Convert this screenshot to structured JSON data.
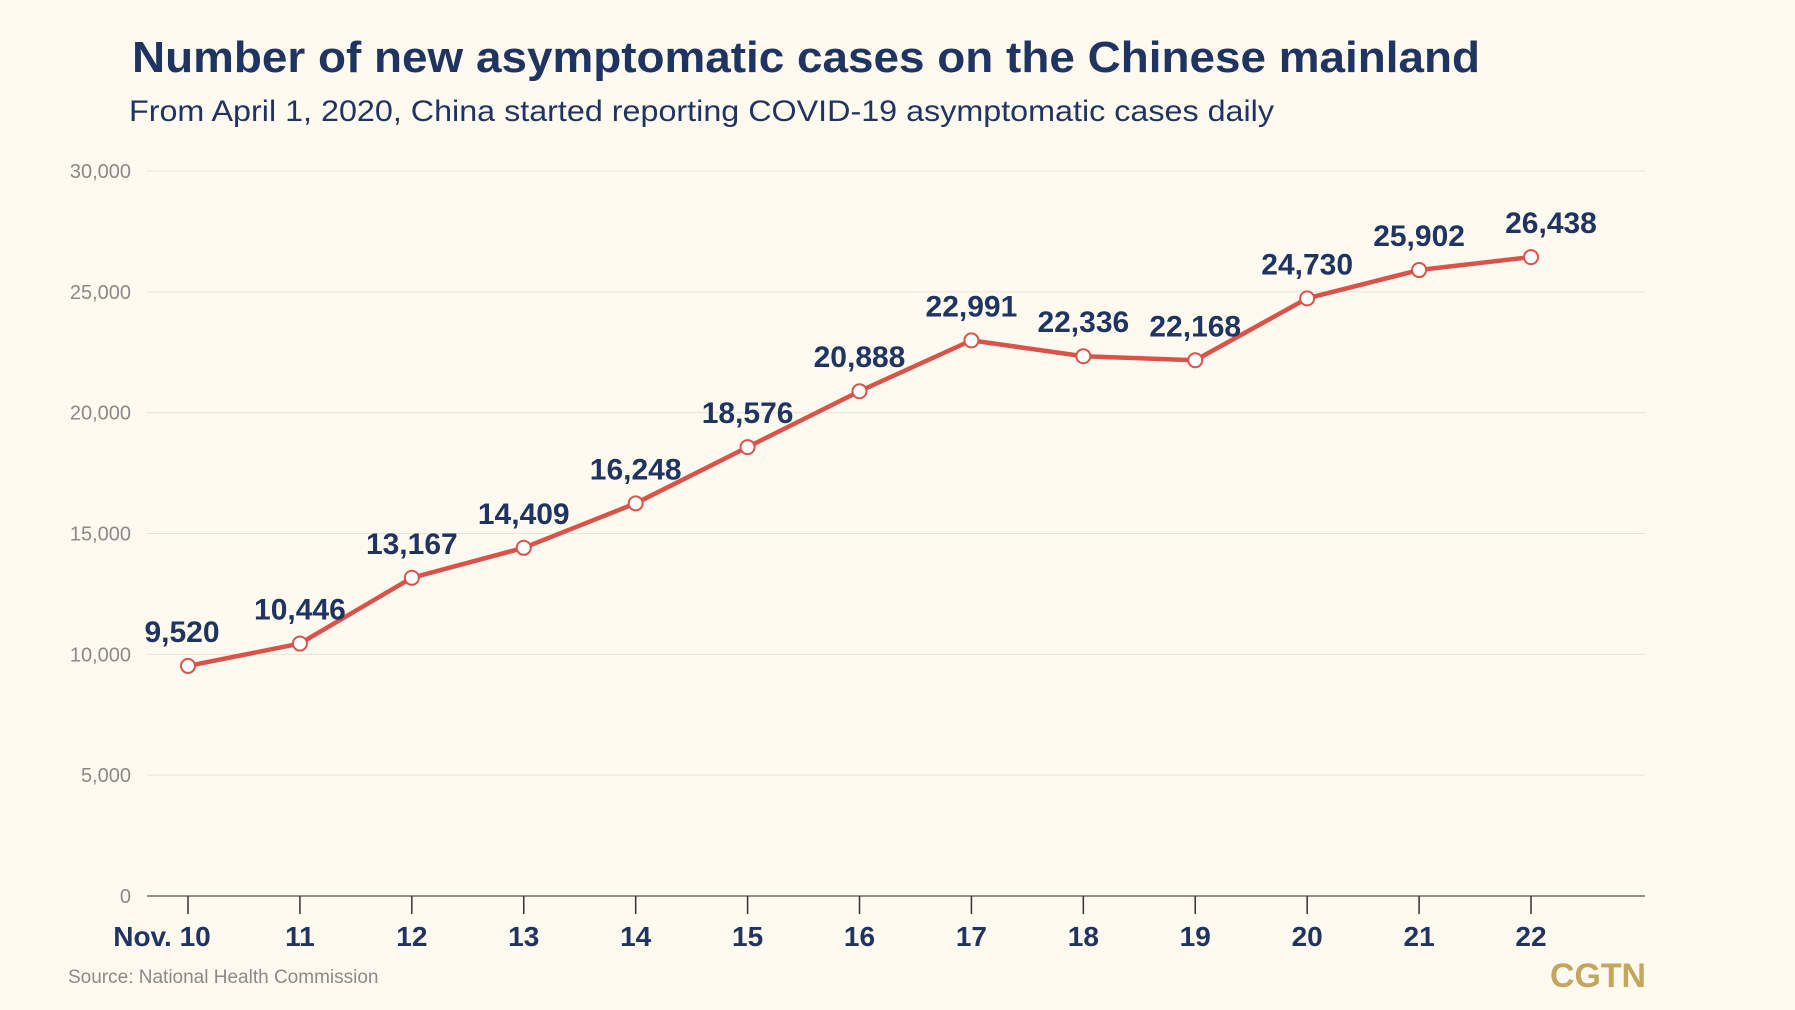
{
  "chart_data": {
    "type": "line",
    "title": "Number of new asymptomatic cases on the Chinese mainland",
    "subtitle": "From April 1, 2020, China started reporting COVID-19 asymptomatic cases daily",
    "categories": [
      "Nov. 10",
      "11",
      "12",
      "13",
      "14",
      "15",
      "16",
      "17",
      "18",
      "19",
      "20",
      "21",
      "22"
    ],
    "values": [
      9520,
      10446,
      13167,
      14409,
      16248,
      18576,
      20888,
      22991,
      22336,
      22168,
      24730,
      25902,
      26438
    ],
    "data_labels": [
      "9,520",
      "10,446",
      "13,167",
      "14,409",
      "16,248",
      "18,576",
      "20,888",
      "22,991",
      "22,336",
      "22,168",
      "24,730",
      "25,902",
      "26,438"
    ],
    "yticks": [
      0,
      5000,
      10000,
      15000,
      20000,
      25000,
      30000
    ],
    "ytick_labels": [
      "0",
      "5,000",
      "10,000",
      "15,000",
      "20,000",
      "25,000",
      "30,000"
    ],
    "ylim": [
      0,
      30000
    ],
    "grid": true,
    "legend": "none",
    "colors": {
      "line": "#d9534a",
      "text": "#1f3461",
      "background": "#fefaef",
      "logo": "#c4a65c"
    }
  },
  "source": "Source: National Health Commission",
  "logo": "CGTN"
}
